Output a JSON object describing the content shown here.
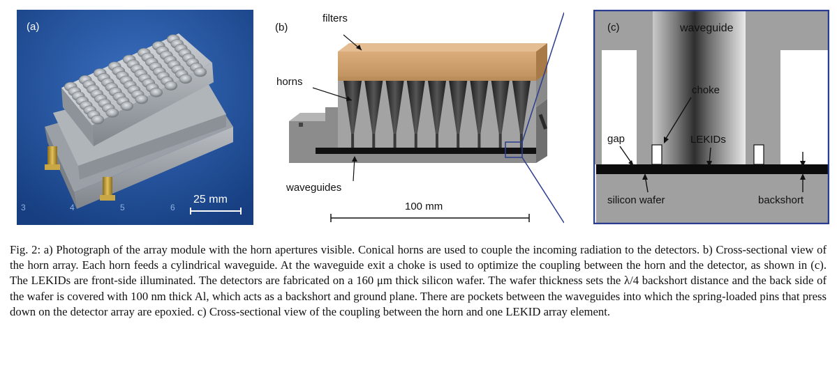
{
  "figure": {
    "panel_a": {
      "label": "(a)",
      "scale_bar": "25 mm",
      "ruler_numbers": [
        "3",
        "4",
        "5",
        "6"
      ]
    },
    "panel_b": {
      "label": "(b)",
      "filters": "filters",
      "horns": "horns",
      "waveguides": "waveguides",
      "scale_bar": "100 mm"
    },
    "panel_c": {
      "label": "(c)",
      "waveguide": "waveguide",
      "choke": "choke",
      "gap": "gap",
      "lekids": "LEKIDs",
      "silicon_wafer": "silicon wafer",
      "backshort": "backshort"
    },
    "caption": {
      "text": "Fig. 2: a) Photograph of the array module with the horn apertures visible. Conical horns are used to couple the incoming radiation to the detectors. b) Cross-sectional view of the horn array. Each horn feeds a cylindrical waveguide. At the waveguide exit a choke is used to optimize the coupling between the horn and the detector, as shown in (c). The LEKIDs are front-side illuminated. The detectors are fabricated on a 160 μm thick silicon wafer. The wafer thickness sets the λ/4 backshort distance and the back side of the wafer is covered with 100 nm thick Al, which acts as a backshort and ground plane. There are pockets between the waveguides into which the spring-loaded pins that press down on the detector array are epoxied. c) Cross-sectional view of the coupling between the horn and one LEKID array element."
    }
  }
}
